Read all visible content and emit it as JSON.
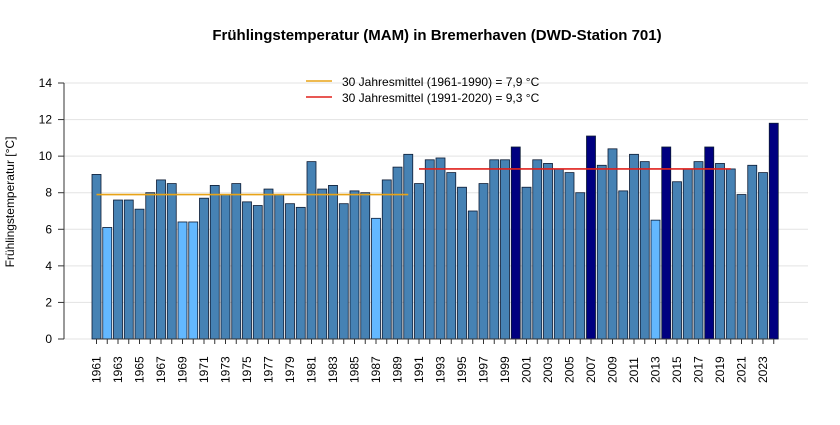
{
  "chart_data": {
    "type": "bar",
    "title": "Frühlingstemperatur (MAM) in Bremerhaven (DWD-Station 701)",
    "xlabel": "",
    "ylabel": "Frühlingstemperatur [°C]",
    "ylim": [
      0,
      14
    ],
    "yticks": [
      0,
      2,
      4,
      6,
      8,
      10,
      12,
      14
    ],
    "grid": true,
    "legend_position": "top-center",
    "categories": [
      1961,
      1962,
      1963,
      1964,
      1965,
      1966,
      1967,
      1968,
      1969,
      1970,
      1971,
      1972,
      1973,
      1974,
      1975,
      1976,
      1977,
      1978,
      1979,
      1980,
      1981,
      1982,
      1983,
      1984,
      1985,
      1986,
      1987,
      1988,
      1989,
      1990,
      1991,
      1992,
      1993,
      1994,
      1995,
      1996,
      1997,
      1998,
      1999,
      2000,
      2001,
      2002,
      2003,
      2004,
      2005,
      2006,
      2007,
      2008,
      2009,
      2010,
      2011,
      2012,
      2013,
      2014,
      2015,
      2016,
      2017,
      2018,
      2019,
      2020,
      2021,
      2022,
      2023,
      2024
    ],
    "values": [
      9.0,
      6.1,
      7.6,
      7.6,
      7.1,
      8.0,
      8.7,
      8.5,
      6.4,
      6.4,
      7.7,
      8.4,
      7.9,
      8.5,
      7.5,
      7.3,
      8.2,
      7.9,
      7.4,
      7.2,
      9.7,
      8.2,
      8.4,
      7.4,
      8.1,
      8.0,
      6.6,
      8.7,
      9.4,
      10.1,
      8.5,
      9.8,
      9.9,
      9.1,
      8.3,
      7.0,
      8.5,
      9.8,
      9.8,
      10.5,
      8.3,
      9.8,
      9.6,
      9.3,
      9.1,
      8.0,
      11.1,
      9.5,
      10.4,
      8.1,
      10.1,
      9.7,
      6.5,
      10.5,
      8.6,
      9.3,
      9.7,
      10.5,
      9.6,
      9.3,
      7.9,
      9.5,
      9.1,
      11.8
    ],
    "bar_classes": [
      "n",
      "c",
      "n",
      "n",
      "n",
      "n",
      "n",
      "n",
      "c",
      "c",
      "n",
      "n",
      "n",
      "n",
      "n",
      "n",
      "n",
      "n",
      "n",
      "n",
      "n",
      "n",
      "n",
      "n",
      "n",
      "n",
      "c",
      "n",
      "n",
      "n",
      "n",
      "n",
      "n",
      "n",
      "n",
      "n",
      "n",
      "n",
      "n",
      "w",
      "n",
      "n",
      "n",
      "n",
      "n",
      "n",
      "w",
      "n",
      "n",
      "n",
      "n",
      "n",
      "c",
      "w",
      "n",
      "n",
      "n",
      "w",
      "n",
      "n",
      "n",
      "n",
      "n",
      "w"
    ],
    "colors": {
      "n": "#4682B4",
      "c": "#63B8FF",
      "w": "#000080"
    },
    "reference_lines": [
      {
        "label": "30 Jahresmittel (1961-1990) = 7,9 °C",
        "value": 7.9,
        "from": 1961,
        "to": 1990,
        "color": "#E8A317"
      },
      {
        "label": "30 Jahresmittel (1991-2020) = 9,3 °C",
        "value": 9.3,
        "from": 1991,
        "to": 2020,
        "color": "#E0201B"
      }
    ]
  }
}
